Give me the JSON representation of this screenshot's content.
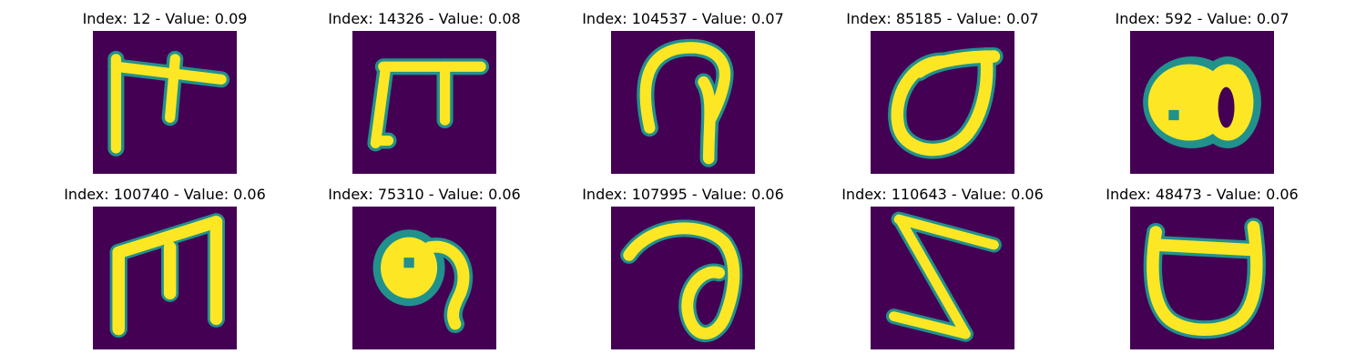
{
  "colors": {
    "background": "#440154",
    "edge": "#21918c",
    "stroke": "#fde725"
  },
  "panels": [
    {
      "title": "Index: 12 - Value: 0.09"
    },
    {
      "title": "Index: 14326 - Value: 0.08"
    },
    {
      "title": "Index: 104537 - Value: 0.07"
    },
    {
      "title": "Index: 85185 - Value: 0.07"
    },
    {
      "title": "Index: 592 - Value: 0.07"
    },
    {
      "title": "Index: 100740 - Value: 0.06"
    },
    {
      "title": "Index: 75310 - Value: 0.06"
    },
    {
      "title": "Index: 107995 - Value: 0.06"
    },
    {
      "title": "Index: 110643 - Value: 0.06"
    },
    {
      "title": "Index: 48473 - Value: 0.06"
    }
  ]
}
